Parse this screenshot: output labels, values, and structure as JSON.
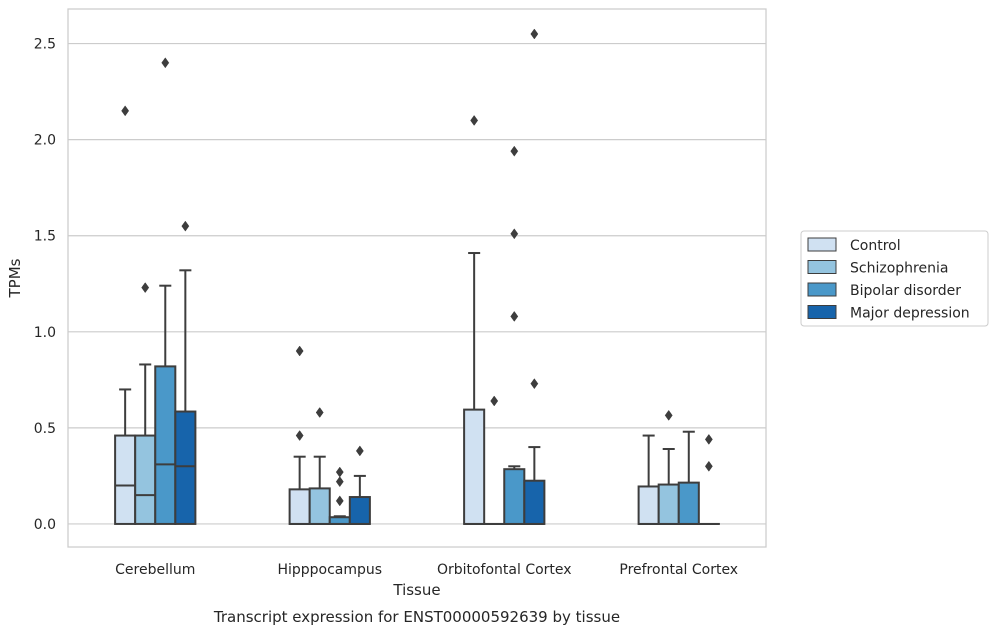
{
  "colors": {
    "Control": "#d0e1f2",
    "Schizophrenia": "#94c4df",
    "Bipolar disorder": "#4a98c9",
    "Major depression": "#1764ab",
    "grid": "#cccccc",
    "frame": "#cccccc",
    "box_edge": "#3d3d3d"
  },
  "chart_data": {
    "type": "box",
    "caption": "Transcript expression for ENST00000592639 by tissue",
    "xlabel": "Tissue",
    "ylabel": "TPMs",
    "ylim": [
      -0.12,
      2.68
    ],
    "yticks": [
      0.0,
      0.5,
      1.0,
      1.5,
      2.0,
      2.5
    ],
    "ytick_labels": [
      "0.0",
      "0.5",
      "1.0",
      "1.5",
      "2.0",
      "2.5"
    ],
    "grid": "horizontal",
    "legend_position": "right",
    "categories": [
      "Cerebellum",
      "Hipppocampus",
      "Orbitofontal Cortex",
      "Prefrontal Cortex"
    ],
    "series": [
      {
        "name": "Control",
        "boxes": [
          {
            "q1": 0.0,
            "median": 0.2,
            "q3": 0.46,
            "whisker_low": 0.0,
            "whisker_high": 0.7,
            "outliers": [
              2.15
            ]
          },
          {
            "q1": 0.0,
            "median": 0.0,
            "q3": 0.18,
            "whisker_low": 0.0,
            "whisker_high": 0.35,
            "outliers": [
              0.46,
              0.9
            ]
          },
          {
            "q1": 0.0,
            "median": 0.0,
            "q3": 0.595,
            "whisker_low": 0.0,
            "whisker_high": 1.41,
            "outliers": [
              2.1
            ]
          },
          {
            "q1": 0.0,
            "median": 0.0,
            "q3": 0.195,
            "whisker_low": 0.0,
            "whisker_high": 0.46,
            "outliers": []
          }
        ]
      },
      {
        "name": "Schizophrenia",
        "boxes": [
          {
            "q1": 0.0,
            "median": 0.15,
            "q3": 0.46,
            "whisker_low": 0.0,
            "whisker_high": 0.83,
            "outliers": [
              1.23
            ]
          },
          {
            "q1": 0.0,
            "median": 0.0,
            "q3": 0.185,
            "whisker_low": 0.0,
            "whisker_high": 0.35,
            "outliers": [
              0.58
            ]
          },
          {
            "q1": 0.0,
            "median": 0.0,
            "q3": 0.0,
            "whisker_low": 0.0,
            "whisker_high": 0.0,
            "outliers": [
              0.64
            ]
          },
          {
            "q1": 0.0,
            "median": 0.0,
            "q3": 0.205,
            "whisker_low": 0.0,
            "whisker_high": 0.39,
            "outliers": [
              0.565
            ]
          }
        ]
      },
      {
        "name": "Bipolar disorder",
        "boxes": [
          {
            "q1": 0.0,
            "median": 0.31,
            "q3": 0.82,
            "whisker_low": 0.0,
            "whisker_high": 1.24,
            "outliers": [
              2.4
            ]
          },
          {
            "q1": 0.0,
            "median": 0.0,
            "q3": 0.035,
            "whisker_low": 0.0,
            "whisker_high": 0.04,
            "outliers": [
              0.12,
              0.22,
              0.27
            ]
          },
          {
            "q1": 0.0,
            "median": 0.0,
            "q3": 0.285,
            "whisker_low": 0.0,
            "whisker_high": 0.3,
            "outliers": [
              1.08,
              1.51,
              1.94
            ]
          },
          {
            "q1": 0.0,
            "median": 0.0,
            "q3": 0.215,
            "whisker_low": 0.0,
            "whisker_high": 0.48,
            "outliers": []
          }
        ]
      },
      {
        "name": "Major depression",
        "boxes": [
          {
            "q1": 0.0,
            "median": 0.3,
            "q3": 0.585,
            "whisker_low": 0.0,
            "whisker_high": 1.32,
            "outliers": [
              1.55
            ]
          },
          {
            "q1": 0.0,
            "median": 0.0,
            "q3": 0.14,
            "whisker_low": 0.0,
            "whisker_high": 0.25,
            "outliers": [
              0.38
            ]
          },
          {
            "q1": 0.0,
            "median": 0.0,
            "q3": 0.225,
            "whisker_low": 0.0,
            "whisker_high": 0.4,
            "outliers": [
              0.73,
              2.55
            ]
          },
          {
            "q1": 0.0,
            "median": 0.0,
            "q3": 0.0,
            "whisker_low": 0.0,
            "whisker_high": 0.0,
            "outliers": [
              0.3,
              0.44
            ]
          }
        ]
      }
    ]
  }
}
